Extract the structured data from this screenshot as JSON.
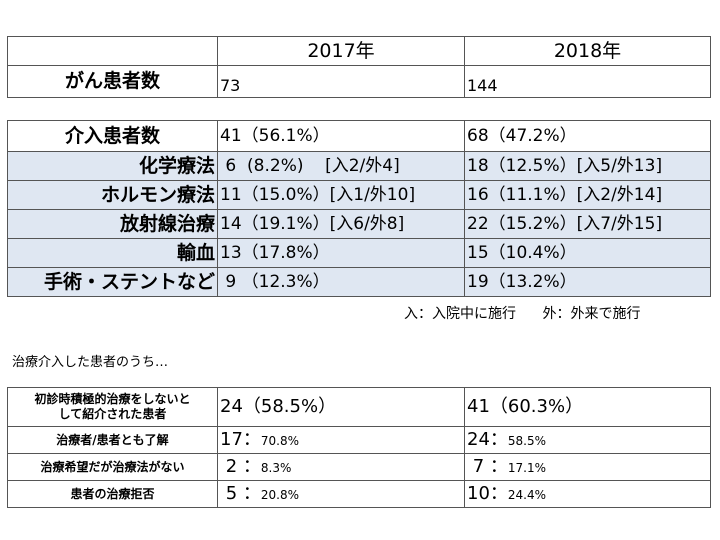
{
  "table1": {
    "headers": [
      "2017年",
      "2018年"
    ],
    "row": {
      "label": "がん患者数",
      "v2017": "73",
      "v2018": "144"
    }
  },
  "table2": {
    "rows": [
      {
        "label": "介入患者数",
        "v2017": "41（56.1%）",
        "v2018": "68（47.2%）",
        "highlight": false
      },
      {
        "label": "化学療法",
        "v2017": " 6  (8.2%)    [入2/外4]",
        "v2018": "18（12.5%）[入5/外13]",
        "highlight": true
      },
      {
        "label": "ホルモン療法",
        "v2017": "11（15.0%）[入1/外10]",
        "v2018": "16（11.1%）[入2/外14]",
        "highlight": true
      },
      {
        "label": "放射線治療",
        "v2017": "14（19.1%）[入6/外8]",
        "v2018": "22（15.2%）[入7/外15]",
        "highlight": true
      },
      {
        "label": "輸血",
        "v2017": "13（17.8%）",
        "v2018": "15（10.4%）",
        "highlight": true
      },
      {
        "label": "手術・ステントなど",
        "v2017": " 9 （12.3%）",
        "v2018": "19（13.2%）",
        "highlight": true
      }
    ]
  },
  "footnote": {
    "in": "入：入院中に施行",
    "out": "外：外来で施行"
  },
  "intro": "治療介入した患者のうち…",
  "table3": {
    "first": {
      "label": "初診時積極的治療をしないと\nして紹介された患者",
      "v2017": "24（58.5%）",
      "v2018": "41（60.3%）"
    },
    "rows": [
      {
        "label": "治療者/患者とも了解",
        "n2017": "17：",
        "p2017": "70.8%",
        "n2018": "24：",
        "p2018": "58.5%"
      },
      {
        "label": "治療希望だが治療法がない",
        "n2017": " 2 ：",
        "p2017": "8.3%",
        "n2018": " 7 ：",
        "p2018": "17.1%"
      },
      {
        "label": "患者の治療拒否",
        "n2017": " 5 ：",
        "p2017": "20.8%",
        "n2018": "10：",
        "p2018": "24.4%"
      }
    ]
  }
}
